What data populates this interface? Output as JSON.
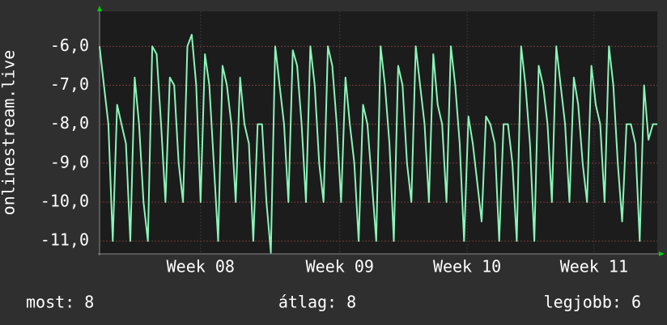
{
  "chart_data": {
    "type": "line",
    "ylabel": "onlinestream.live",
    "color": "#8af5b8",
    "values": [
      -6.0,
      -7.0,
      -8.0,
      -11.0,
      -7.5,
      -8.0,
      -8.5,
      -11.0,
      -6.8,
      -8.0,
      -10.0,
      -11.0,
      -6.0,
      -6.2,
      -8.0,
      -10.0,
      -6.8,
      -7.0,
      -9.0,
      -10.0,
      -6.0,
      -5.7,
      -7.0,
      -10.0,
      -6.2,
      -7.0,
      -9.0,
      -11.0,
      -6.5,
      -7.0,
      -8.0,
      -10.0,
      -6.8,
      -8.0,
      -8.5,
      -11.0,
      -8.0,
      -8.0,
      -10.0,
      -11.3,
      -6.0,
      -7.0,
      -8.0,
      -10.0,
      -6.1,
      -6.5,
      -8.0,
      -10.0,
      -6.0,
      -7.0,
      -9.0,
      -10.0,
      -6.0,
      -6.5,
      -8.0,
      -10.0,
      -6.8,
      -8.0,
      -9.0,
      -11.0,
      -7.5,
      -8.0,
      -9.5,
      -11.0,
      -6.0,
      -7.0,
      -8.5,
      -11.0,
      -6.5,
      -7.0,
      -9.0,
      -10.0,
      -6.0,
      -7.0,
      -8.0,
      -10.0,
      -6.2,
      -7.5,
      -8.0,
      -10.0,
      -6.0,
      -7.0,
      -8.5,
      -11.0,
      -7.8,
      -8.5,
      -9.5,
      -10.5,
      -7.8,
      -8.0,
      -8.5,
      -11.0,
      -8.0,
      -8.0,
      -9.0,
      -11.0,
      -6.0,
      -7.0,
      -8.5,
      -11.0,
      -6.5,
      -7.0,
      -8.0,
      -10.0,
      -6.0,
      -7.0,
      -8.0,
      -10.0,
      -6.8,
      -7.5,
      -9.0,
      -10.0,
      -6.5,
      -7.5,
      -8.0,
      -10.0,
      -6.0,
      -7.0,
      -9.0,
      -10.5,
      -8.0,
      -8.0,
      -8.5,
      -11.0,
      -7.0,
      -8.4,
      -8.0,
      -8.0
    ],
    "xlim": [
      0,
      127
    ],
    "xticks": [
      {
        "value": 23,
        "label": "Week 08"
      },
      {
        "value": 54.7,
        "label": "Week 09"
      },
      {
        "value": 83.7,
        "label": "Week 10"
      },
      {
        "value": 112.6,
        "label": "Week 11"
      }
    ],
    "ylim": [
      -11.33,
      -5.1
    ],
    "yticks": [
      {
        "value": -6,
        "label": "-6,0"
      },
      {
        "value": -7,
        "label": "-7,0"
      },
      {
        "value": -8,
        "label": "-8,0"
      },
      {
        "value": -9,
        "label": "-9,0"
      },
      {
        "value": -10,
        "label": "-10,0"
      },
      {
        "value": -11,
        "label": "-11,0"
      }
    ],
    "grid": true,
    "footer": [
      "most: 8",
      "átlag: 8",
      "legjobb: 6"
    ]
  }
}
